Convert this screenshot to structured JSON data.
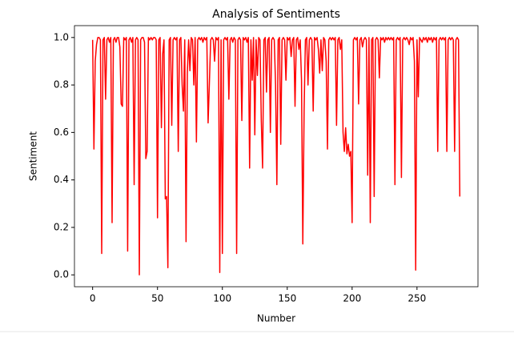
{
  "chart_data": {
    "type": "line",
    "title": "Analysis of Sentiments",
    "x_label": "Number",
    "y_label": "Sentiment",
    "color": "#ff0000",
    "x": [
      0,
      1,
      2,
      3,
      4,
      5,
      6,
      7,
      8,
      9,
      10,
      11,
      12,
      13,
      14,
      15,
      16,
      17,
      18,
      19,
      20,
      21,
      22,
      23,
      24,
      25,
      26,
      27,
      28,
      29,
      30,
      31,
      32,
      33,
      34,
      35,
      36,
      37,
      38,
      39,
      40,
      41,
      42,
      43,
      44,
      45,
      46,
      47,
      48,
      49,
      50,
      51,
      52,
      53,
      54,
      55,
      56,
      57,
      58,
      59,
      60,
      61,
      62,
      63,
      64,
      65,
      66,
      67,
      68,
      69,
      70,
      71,
      72,
      73,
      74,
      75,
      76,
      77,
      78,
      79,
      80,
      81,
      82,
      83,
      84,
      85,
      86,
      87,
      88,
      89,
      90,
      91,
      92,
      93,
      94,
      95,
      96,
      97,
      98,
      99,
      100,
      101,
      102,
      103,
      104,
      105,
      106,
      107,
      108,
      109,
      110,
      111,
      112,
      113,
      114,
      115,
      116,
      117,
      118,
      119,
      120,
      121,
      122,
      123,
      124,
      125,
      126,
      127,
      128,
      129,
      130,
      131,
      132,
      133,
      134,
      135,
      136,
      137,
      138,
      139,
      140,
      141,
      142,
      143,
      144,
      145,
      146,
      147,
      148,
      149,
      150,
      151,
      152,
      153,
      154,
      155,
      156,
      157,
      158,
      159,
      160,
      161,
      162,
      163,
      164,
      165,
      166,
      167,
      168,
      169,
      170,
      171,
      172,
      173,
      174,
      175,
      176,
      177,
      178,
      179,
      180,
      181,
      182,
      183,
      184,
      185,
      186,
      187,
      188,
      189,
      190,
      191,
      192,
      193,
      194,
      195,
      196,
      197,
      198,
      199,
      200,
      201,
      202,
      203,
      204,
      205,
      206,
      207,
      208,
      209,
      210,
      211,
      212,
      213,
      214,
      215,
      216,
      217,
      218,
      219,
      220,
      221,
      222,
      223,
      224,
      225,
      226,
      227,
      228,
      229,
      230,
      231,
      232,
      233,
      234,
      235,
      236,
      237,
      238,
      239,
      240,
      241,
      242,
      243,
      244,
      245,
      246,
      247,
      248,
      249,
      250,
      251,
      252,
      253,
      254,
      255,
      256,
      257,
      258,
      259,
      260,
      261,
      262,
      263,
      264,
      265,
      266,
      267,
      268,
      269,
      270,
      271,
      272,
      273,
      274,
      275,
      276,
      277,
      278,
      279,
      280,
      281,
      282,
      283
    ],
    "values": [
      0.99,
      0.53,
      0.9,
      0.97,
      1.0,
      1.0,
      0.99,
      0.09,
      0.99,
      1.0,
      0.74,
      0.99,
      1.0,
      0.98,
      1.0,
      0.22,
      0.99,
      1.0,
      0.98,
      1.0,
      1.0,
      0.96,
      0.72,
      0.71,
      1.0,
      0.99,
      1.0,
      0.1,
      0.99,
      1.0,
      0.98,
      1.0,
      0.38,
      0.99,
      1.0,
      0.99,
      0.0,
      0.99,
      1.0,
      1.0,
      0.98,
      0.49,
      0.52,
      1.0,
      0.99,
      1.0,
      0.99,
      1.0,
      1.0,
      0.99,
      0.24,
      0.99,
      1.0,
      0.62,
      0.93,
      0.99,
      0.32,
      0.33,
      0.03,
      0.99,
      1.0,
      0.63,
      0.99,
      1.0,
      0.99,
      1.0,
      0.52,
      0.99,
      1.0,
      0.8,
      0.69,
      0.99,
      0.14,
      0.85,
      0.99,
      0.86,
      1.0,
      0.99,
      0.8,
      1.0,
      0.56,
      0.99,
      1.0,
      0.99,
      1.0,
      0.98,
      1.0,
      0.99,
      1.0,
      0.64,
      0.81,
      0.99,
      1.0,
      0.99,
      0.9,
      1.0,
      0.99,
      1.0,
      0.01,
      0.99,
      0.09,
      0.99,
      1.0,
      0.99,
      1.0,
      0.74,
      0.99,
      1.0,
      0.98,
      1.0,
      0.99,
      0.09,
      0.99,
      1.0,
      0.99,
      0.65,
      1.0,
      0.99,
      1.0,
      0.98,
      1.0,
      0.45,
      0.99,
      0.82,
      1.0,
      0.59,
      0.99,
      0.84,
      1.0,
      0.99,
      0.65,
      0.45,
      0.99,
      1.0,
      0.77,
      0.99,
      1.0,
      0.6,
      0.99,
      1.0,
      0.99,
      0.8,
      0.38,
      0.99,
      1.0,
      0.55,
      0.99,
      1.0,
      0.99,
      0.82,
      1.0,
      0.99,
      1.0,
      0.92,
      0.99,
      1.0,
      0.71,
      0.99,
      1.0,
      0.95,
      0.99,
      0.82,
      0.13,
      0.69,
      0.99,
      1.0,
      0.8,
      0.99,
      1.0,
      0.99,
      0.69,
      1.0,
      0.99,
      1.0,
      0.95,
      0.85,
      0.99,
      0.86,
      1.0,
      0.99,
      0.9,
      0.53,
      0.99,
      1.0,
      0.99,
      1.0,
      0.99,
      1.0,
      0.63,
      0.99,
      1.0,
      0.95,
      0.99,
      0.6,
      0.52,
      0.62,
      0.51,
      0.55,
      0.5,
      0.52,
      0.22,
      0.99,
      1.0,
      0.99,
      1.0,
      0.72,
      0.99,
      1.0,
      0.96,
      0.99,
      1.0,
      0.99,
      0.42,
      1.0,
      0.22,
      0.99,
      1.0,
      0.33,
      0.99,
      1.0,
      0.99,
      0.83,
      1.0,
      0.99,
      1.0,
      0.98,
      1.0,
      0.99,
      1.0,
      0.99,
      1.0,
      0.99,
      1.0,
      0.38,
      0.99,
      1.0,
      0.99,
      1.0,
      0.41,
      0.99,
      1.0,
      0.99,
      1.0,
      0.99,
      0.97,
      1.0,
      0.99,
      1.0,
      0.9,
      0.02,
      0.99,
      0.75,
      1.0,
      0.99,
      0.98,
      1.0,
      0.99,
      1.0,
      0.98,
      1.0,
      0.99,
      1.0,
      0.98,
      1.0,
      0.99,
      1.0,
      0.52,
      0.99,
      1.0,
      0.99,
      1.0,
      0.99,
      1.0,
      0.52,
      0.99,
      1.0,
      0.99,
      1.0,
      0.99,
      0.52,
      0.99,
      1.0,
      0.99,
      0.33
    ],
    "xlim": [
      -14,
      297
    ],
    "ylim": [
      -0.05,
      1.05
    ],
    "xticks": [
      0,
      50,
      100,
      150,
      200,
      250
    ],
    "yticks": [
      {
        "value": 0,
        "label": "0.0"
      },
      0.2,
      0.4,
      0.6,
      0.8,
      {
        "value": 1,
        "label": "1.0"
      }
    ]
  }
}
